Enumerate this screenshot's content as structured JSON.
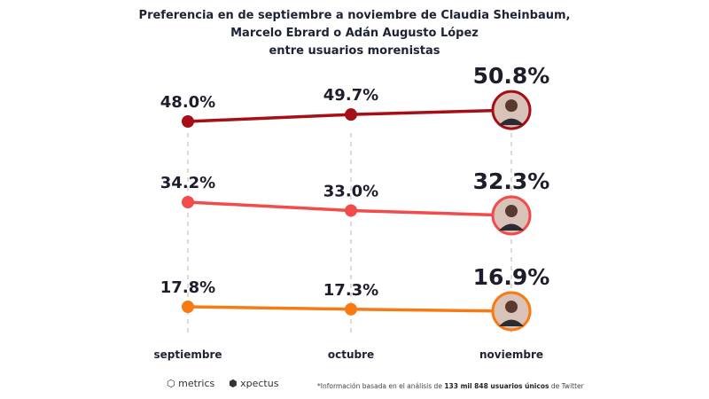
{
  "title_lines": [
    "Preferencia en de septiembre a noviembre de Claudia Sheinbaum,",
    "Marcelo Ebrard o Adán Augusto López",
    "entre usuarios morenistas"
  ],
  "chart_data": {
    "type": "line",
    "title": "Preferencia en de septiembre a noviembre de Claudia Sheinbaum, Marcelo Ebrard o Adán Augusto López entre usuarios morenistas",
    "categories": [
      "septiembre",
      "octubre",
      "noviembre"
    ],
    "series": [
      {
        "name": "Claudia Sheinbaum",
        "values": [
          48.0,
          49.7,
          50.8
        ],
        "labels": [
          "48.0%",
          "49.7%",
          "50.8%"
        ],
        "color": "#a50f15"
      },
      {
        "name": "Marcelo Ebrard",
        "values": [
          34.2,
          33.0,
          32.3
        ],
        "labels": [
          "34.2%",
          "33.0%",
          "32.3%"
        ],
        "color": "#f24b4b"
      },
      {
        "name": "Adán Augusto López",
        "values": [
          17.8,
          17.3,
          16.9
        ],
        "labels": [
          "17.8%",
          "17.3%",
          "16.9%"
        ],
        "color": "#f77a14"
      }
    ],
    "xlabel": "",
    "ylabel": "",
    "grid": "vertical dashed",
    "legend": "none"
  },
  "footer": {
    "logo1": "metrics",
    "logo2": "xpectus",
    "note_prefix": "*Información basada en el análisis de ",
    "note_bold1": "133 mil 848 usuarios únicos",
    "note_mid": " de Twitter"
  }
}
